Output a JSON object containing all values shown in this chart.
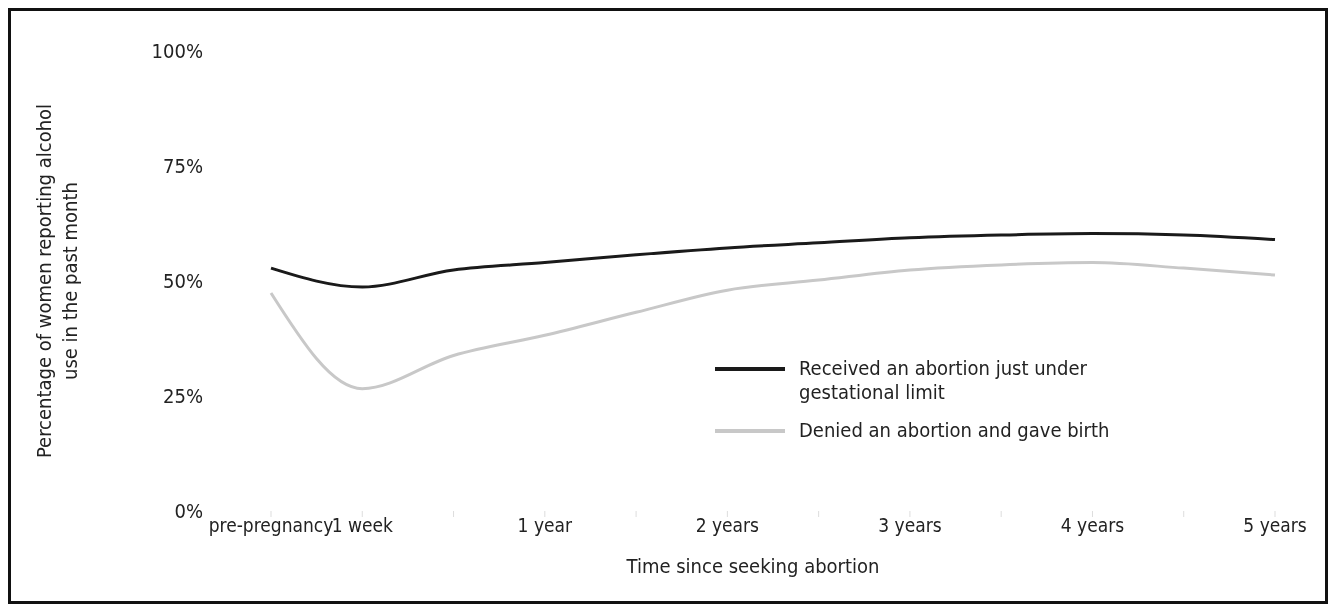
{
  "chart_data": {
    "type": "line",
    "xlabel": "Time since seeking abortion",
    "ylabel": "Percentage of women reporting alcohol use in the past month",
    "categories": [
      "pre-pregnancy",
      "1 week",
      null,
      "1 year",
      null,
      "2 years",
      null,
      "3 years",
      null,
      "4 years",
      null,
      "5 years"
    ],
    "series": [
      {
        "name": "Received an abortion just under gestational limit",
        "color": "#1a1a1a",
        "values": [
          52.8,
          48.7,
          52.4,
          54,
          55.7,
          57.2,
          58.3,
          59.4,
          60,
          60.3,
          60,
          59
        ]
      },
      {
        "name": "Denied an abortion and gave birth",
        "color": "#c8c8c8",
        "values": [
          47.4,
          26.6,
          33.8,
          38.2,
          43.2,
          48,
          50.2,
          52.4,
          53.5,
          54,
          52.8,
          51.3
        ]
      }
    ],
    "ylim": [
      0,
      100
    ],
    "yticks": [
      {
        "value": 0,
        "label": "0%"
      },
      {
        "value": 25,
        "label": "25%"
      },
      {
        "value": 50,
        "label": "50%"
      },
      {
        "value": 75,
        "label": "75%"
      },
      {
        "value": 100,
        "label": "100%"
      }
    ],
    "grid": false,
    "legend": "right",
    "marker": "none",
    "line_style": "solid"
  }
}
